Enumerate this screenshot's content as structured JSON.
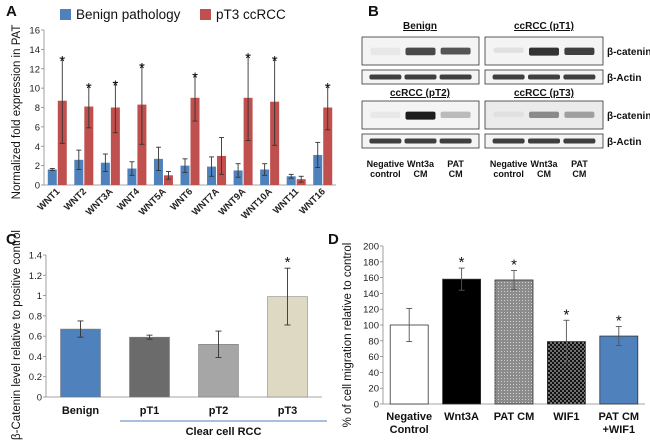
{
  "panels": {
    "a": "A",
    "b": "B",
    "c": "C",
    "d": "D"
  },
  "chart_data": [
    {
      "panel": "A",
      "type": "bar",
      "ylabel": "Normalized fold expression in PAT",
      "ylim": [
        0,
        16
      ],
      "yticks": [
        0,
        2,
        4,
        6,
        8,
        10,
        12,
        14,
        16
      ],
      "categories": [
        "WNT1",
        "WNT2",
        "WNT3A",
        "WNT4",
        "WNT5A",
        "WNT6",
        "WNT7A",
        "WNT9A",
        "WNT10A",
        "WNT11",
        "WNT16"
      ],
      "series": [
        {
          "name": "Benign pathology",
          "color": "#4f81bd",
          "values": [
            1.6,
            2.6,
            2.3,
            1.7,
            2.7,
            2.0,
            1.9,
            1.5,
            1.6,
            0.9,
            3.1
          ],
          "errors": [
            0.1,
            1.0,
            0.9,
            0.7,
            1.2,
            0.7,
            1.0,
            0.7,
            0.6,
            0.2,
            1.3
          ]
        },
        {
          "name": "pT3 ccRCC",
          "color": "#c0504d",
          "values": [
            8.7,
            8.1,
            8.0,
            8.3,
            1.0,
            9.0,
            3.0,
            9.0,
            8.6,
            0.6,
            8.0
          ],
          "errors": [
            4.4,
            2.2,
            2.6,
            4.1,
            0.4,
            2.4,
            1.9,
            4.4,
            4.5,
            0.3,
            2.3
          ]
        }
      ],
      "significant": [
        true,
        true,
        true,
        true,
        false,
        true,
        false,
        true,
        true,
        false,
        true
      ],
      "star_symbol": "*"
    },
    {
      "panel": "C",
      "type": "bar",
      "ylabel": "β-Catenin level relative to positive control",
      "ylim": [
        0,
        1.4
      ],
      "yticks": [
        "0",
        "0.2",
        "0.4",
        "0.6",
        "0.8",
        "1",
        "1.2",
        "1.4"
      ],
      "categories": [
        "Benign",
        "pT1",
        "pT2",
        "pT3"
      ],
      "values": [
        0.67,
        0.59,
        0.52,
        0.99
      ],
      "errors": [
        0.08,
        0.02,
        0.13,
        0.28
      ],
      "colors": [
        "#4f81bd",
        "#6b6b6b",
        "#a6a6a6",
        "#ddd9c3"
      ],
      "significant": [
        false,
        false,
        false,
        true
      ],
      "group_label": "Clear cell RCC",
      "star_symbol": "*"
    },
    {
      "panel": "D",
      "type": "bar",
      "ylabel": "% of cell migration relative to control",
      "ylim": [
        0,
        200
      ],
      "yticks": [
        0,
        20,
        40,
        60,
        80,
        100,
        120,
        140,
        160,
        180,
        200
      ],
      "categories": [
        [
          "Negative",
          "Control"
        ],
        [
          "Wnt3A"
        ],
        [
          "PAT CM"
        ],
        [
          "WIF1"
        ],
        [
          "PAT CM",
          "+WIF1"
        ]
      ],
      "values": [
        100,
        158,
        157,
        79,
        86
      ],
      "errors": [
        21,
        14,
        12,
        27,
        12
      ],
      "fills": [
        "white",
        "black",
        "gray-pattern",
        "dotted",
        "blue"
      ],
      "significant": [
        false,
        true,
        true,
        true,
        true
      ],
      "star_symbol": "*"
    }
  ],
  "western": {
    "groups": [
      {
        "title": "Benign"
      },
      {
        "title": "ccRCC (pT1)"
      },
      {
        "title": "ccRCC (pT2)"
      },
      {
        "title": "ccRCC (pT3)"
      }
    ],
    "proteins": [
      "β-catenin",
      "β-Actin"
    ],
    "lanes": [
      [
        "Negative",
        "control"
      ],
      [
        "Wnt3a",
        "CM"
      ],
      [
        "PAT",
        "CM"
      ]
    ]
  }
}
